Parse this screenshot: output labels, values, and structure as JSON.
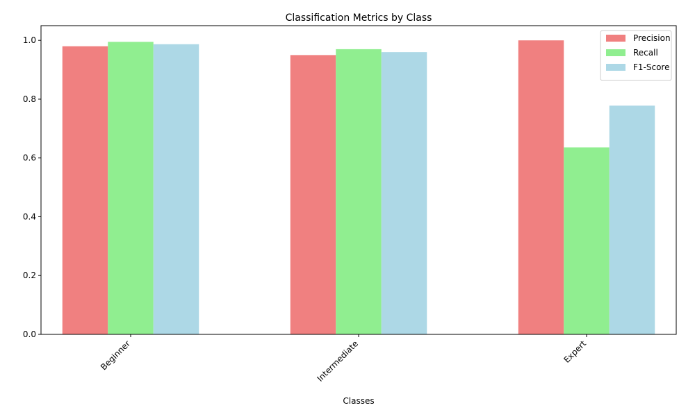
{
  "chart_data": {
    "type": "bar",
    "title": "Classification Metrics by Class",
    "xlabel": "Classes",
    "ylabel": "",
    "categories": [
      "Beginner",
      "Intermediate",
      "Expert"
    ],
    "series": [
      {
        "name": "Precision",
        "color": "#f08080",
        "values": [
          0.98,
          0.95,
          1.0
        ]
      },
      {
        "name": "Recall",
        "color": "#90ee90",
        "values": [
          0.995,
          0.97,
          0.636
        ]
      },
      {
        "name": "F1-Score",
        "color": "#add8e6",
        "values": [
          0.987,
          0.96,
          0.778
        ]
      }
    ],
    "ylim": [
      0,
      1.05
    ],
    "yticks": [
      "0.0",
      "0.2",
      "0.4",
      "0.6",
      "0.8",
      "1.0"
    ],
    "grid": false,
    "legend_position": "top-right"
  }
}
